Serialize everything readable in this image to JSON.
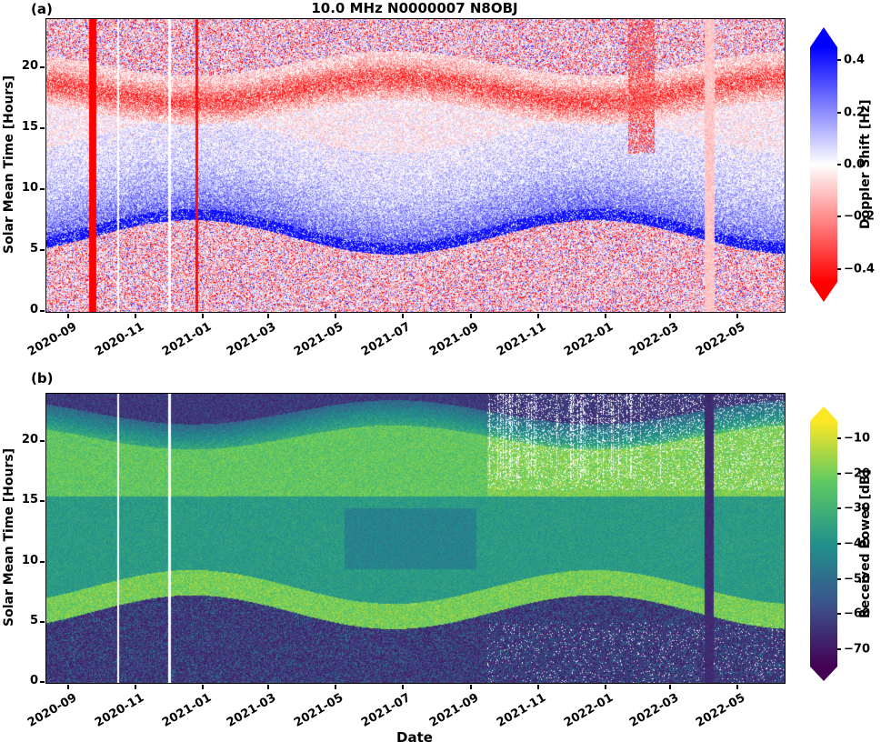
{
  "figure": {
    "panel_a_label": "(a)",
    "panel_b_label": "(b)",
    "title": "10.0 MHz N0000007 N8OBJ",
    "xlabel": "Date"
  },
  "chart_data": [
    {
      "id": "doppler_shift_heatmap",
      "type": "heatmap",
      "panel": "(a)",
      "title": "10.0 MHz N0000007 N8OBJ",
      "xlabel": "",
      "ylabel": "Solar Mean Time [Hours]",
      "x_range": [
        "2020-08-11",
        "2022-06-12"
      ],
      "total_days": 670,
      "ylim": [
        0,
        24
      ],
      "y_ticks": [
        0,
        5,
        10,
        15,
        20
      ],
      "x_tick_labels": [
        "2020-09",
        "2020-11",
        "2021-01",
        "2021-03",
        "2021-05",
        "2021-07",
        "2021-09",
        "2021-11",
        "2022-01",
        "2022-03",
        "2022-05"
      ],
      "grid": false,
      "colorbar": {
        "label": "Doppler Shift [Hz]",
        "tick_labels": [
          "0.4",
          "0.2",
          "0.0",
          "−0.2",
          "−0.4"
        ],
        "tick_values": [
          0.4,
          0.2,
          0.0,
          -0.2,
          -0.4
        ],
        "clim": [
          -0.45,
          0.45
        ],
        "colormap": "blue-white-red (positive=blue, negative=red)",
        "extend": "both",
        "color_positive": "#0000ff",
        "color_zero": "#ffffff",
        "color_negative": "#ff0000"
      },
      "pattern": {
        "description": "Diurnal ionospheric Doppler shift: narrow strong positive (blue) band at sunrise (~5-8 h, seasonally varying), diffuse positive morning region fading by midday, diffuse negative (red) band around sunset (~17-19 h), noisy weakly-negative red/white speckle at night.",
        "sunrise_base_hour": 6.4,
        "sunrise_seasonal_amp": 1.4,
        "sunset_base_hour": 18.2,
        "sunset_seasonal_amp": 1.0,
        "winter_solstice_day_index": 132,
        "anomalies": {
          "solid_red_column_days": [
            38,
            45
          ],
          "thin_red_column_days": [
            135,
            137
          ],
          "white_gap_column_days": [
            [
              64,
              66
            ],
            [
              110,
              113
            ]
          ],
          "red_blob": {
            "days": [
              528,
              552
            ],
            "hours_above": 13
          },
          "pale_pink_column_days": [
            597,
            606
          ]
        }
      }
    },
    {
      "id": "received_power_heatmap",
      "type": "heatmap",
      "panel": "(b)",
      "title": "",
      "xlabel": "Date",
      "ylabel": "Solar Mean Time [Hours]",
      "x_range": [
        "2020-08-11",
        "2022-06-12"
      ],
      "total_days": 670,
      "ylim": [
        0,
        24
      ],
      "y_ticks": [
        0,
        5,
        10,
        15,
        20
      ],
      "x_tick_labels": [
        "2020-09",
        "2020-11",
        "2021-01",
        "2021-03",
        "2021-05",
        "2021-07",
        "2021-09",
        "2021-11",
        "2022-01",
        "2022-03",
        "2022-05"
      ],
      "grid": false,
      "colorbar": {
        "label": "Received Power [dB]",
        "tick_labels": [
          "−10",
          "−20",
          "−30",
          "−40",
          "−50",
          "−60",
          "−70"
        ],
        "tick_values": [
          -10,
          -20,
          -30,
          -40,
          -50,
          -60,
          -70
        ],
        "clim": [
          -75,
          -5
        ],
        "colormap": "viridis",
        "extend": "both",
        "viridis_stops": [
          "#440154",
          "#3b528b",
          "#21918c",
          "#5ec962",
          "#fde725"
        ]
      },
      "pattern": {
        "description": "Diurnal received power: dark purple low power at night, bright yellow-green bands near sunrise (~5-7 h) and evening (~16-21 h), teal mid-day plateau with darker midday patch in mid-2021, white data gaps and speckled missing data after 2021-09, dark low-power column near 2022-04.",
        "sunrise_base_hour": 6.4,
        "sunrise_seasonal_amp": 1.4,
        "sunset_base_hour": 18.2,
        "sunset_seasonal_amp": 1.0,
        "winter_solstice_day_index": 132,
        "night_db": -64,
        "day_db": -37,
        "sunrise_band_db": -20,
        "evening_band_db": -23,
        "anomalies": {
          "white_gap_column_days": [
            [
              64,
              66
            ],
            [
              110,
              113
            ]
          ],
          "dark_column_days": [
            597,
            605
          ],
          "missing_speckle_after_day": 400,
          "midday_dark_patch": {
            "days": [
              270,
              390
            ],
            "hours": [
              9.5,
              14.5
            ],
            "delta_db": -7
          }
        }
      }
    }
  ]
}
